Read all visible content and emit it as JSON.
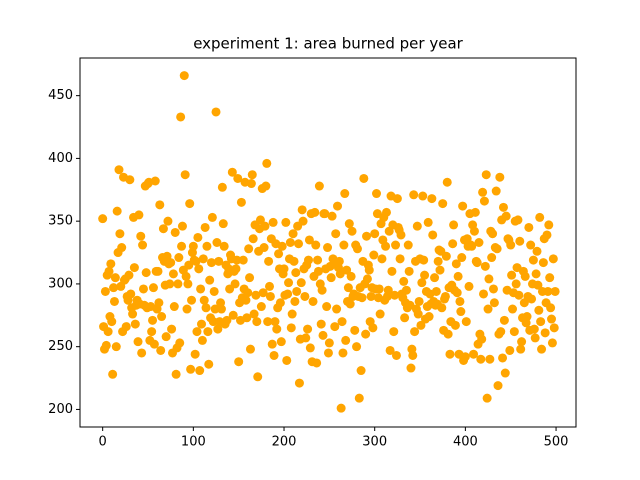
{
  "chart_data": {
    "type": "scatter",
    "title": "experiment 1: area burned per year",
    "color": "#ffa500",
    "xlim": [
      -25,
      522
    ],
    "ylim": [
      186,
      480
    ],
    "xticks": [
      0,
      100,
      200,
      300,
      400,
      500
    ],
    "yticks": [
      200,
      250,
      300,
      350,
      400,
      450
    ],
    "grid": false,
    "x": [
      0,
      1,
      2,
      3,
      4,
      5,
      6,
      7,
      8,
      9,
      10,
      11,
      12,
      13,
      14,
      15,
      16,
      17,
      18,
      19,
      20,
      21,
      22,
      23,
      24,
      25,
      26,
      27,
      28,
      29,
      30,
      31,
      32,
      33,
      34,
      35,
      36,
      37,
      38,
      39,
      40,
      41,
      42,
      43,
      44,
      45,
      46,
      47,
      48,
      49,
      50,
      51,
      52,
      53,
      54,
      55,
      56,
      57,
      58,
      59,
      60,
      61,
      62,
      63,
      64,
      65,
      66,
      67,
      68,
      69,
      70,
      71,
      72,
      73,
      74,
      75,
      76,
      77,
      78,
      79,
      80,
      81,
      82,
      83,
      84,
      85,
      86,
      87,
      88,
      89,
      90,
      91,
      92,
      93,
      94,
      95,
      96,
      97,
      98,
      99,
      100,
      101,
      102,
      103,
      104,
      105,
      106,
      107,
      108,
      109,
      110,
      111,
      112,
      113,
      114,
      115,
      116,
      117,
      118,
      119,
      120,
      121,
      122,
      123,
      124,
      125,
      126,
      127,
      128,
      129,
      130,
      131,
      132,
      133,
      134,
      135,
      136,
      137,
      138,
      139,
      140,
      141,
      142,
      143,
      144,
      145,
      146,
      147,
      148,
      149,
      150,
      151,
      152,
      153,
      154,
      155,
      156,
      157,
      158,
      159,
      160,
      161,
      162,
      163,
      164,
      165,
      166,
      167,
      168,
      169,
      170,
      171,
      172,
      173,
      174,
      175,
      176,
      177,
      178,
      179,
      180,
      181,
      182,
      183,
      184,
      185,
      186,
      187,
      188,
      189,
      190,
      191,
      192,
      193,
      194,
      195,
      196,
      197,
      198,
      199,
      200,
      201,
      202,
      203,
      204,
      205,
      206,
      207,
      208,
      209,
      210,
      211,
      212,
      213,
      214,
      215,
      216,
      217,
      218,
      219,
      220,
      221,
      222,
      223,
      224,
      225,
      226,
      227,
      228,
      229,
      230,
      231,
      232,
      233,
      234,
      235,
      236,
      237,
      238,
      239,
      240,
      241,
      242,
      243,
      244,
      245,
      246,
      247,
      248,
      249,
      250,
      251,
      252,
      253,
      254,
      255,
      256,
      257,
      258,
      259,
      260,
      261,
      262,
      263,
      264,
      265,
      266,
      267,
      268,
      269,
      270,
      271,
      272,
      273,
      274,
      275,
      276,
      277,
      278,
      279,
      280,
      281,
      282,
      283,
      284,
      285,
      286,
      287,
      288,
      289,
      290,
      291,
      292,
      293,
      294,
      295,
      296,
      297,
      298,
      299,
      300,
      301,
      302,
      303,
      304,
      305,
      306,
      307,
      308,
      309,
      310,
      311,
      312,
      313,
      314,
      315,
      316,
      317,
      318,
      319,
      320,
      321,
      322,
      323,
      324,
      325,
      326,
      327,
      328,
      329,
      330,
      331,
      332,
      333,
      334,
      335,
      336,
      337,
      338,
      339,
      340,
      341,
      342,
      343,
      344,
      345,
      346,
      347,
      348,
      349,
      350,
      351,
      352,
      353,
      354,
      355,
      356,
      357,
      358,
      359,
      360,
      361,
      362,
      363,
      364,
      365,
      366,
      367,
      368,
      369,
      370,
      371,
      372,
      373,
      374,
      375,
      376,
      377,
      378,
      379,
      380,
      381,
      382,
      383,
      384,
      385,
      386,
      387,
      388,
      389,
      390,
      391,
      392,
      393,
      394,
      395,
      396,
      397,
      398,
      399,
      400,
      401,
      402,
      403,
      404,
      405,
      406,
      407,
      408,
      409,
      410,
      411,
      412,
      413,
      414,
      415,
      416,
      417,
      418,
      419,
      420,
      421,
      422,
      423,
      424,
      425,
      426,
      427,
      428,
      429,
      430,
      431,
      432,
      433,
      434,
      435,
      436,
      437,
      438,
      439,
      440,
      441,
      442,
      443,
      444,
      445,
      446,
      447,
      448,
      449,
      450,
      451,
      452,
      453,
      454,
      455,
      456,
      457,
      458,
      459,
      460,
      461,
      462,
      463,
      464,
      465,
      466,
      467,
      468,
      469,
      470,
      471,
      472,
      473,
      474,
      475,
      476,
      477,
      478,
      479,
      480,
      481,
      482,
      483,
      484,
      485,
      486,
      487,
      488,
      489,
      490,
      491,
      492,
      493,
      494,
      495,
      496,
      497,
      498,
      499
    ],
    "values": [
      352,
      266,
      248,
      294,
      251,
      307,
      262,
      310,
      274,
      316,
      270,
      228,
      297,
      286,
      305,
      250,
      358,
      325,
      391,
      340,
      298,
      329,
      262,
      385,
      303,
      304,
      266,
      290,
      287,
      307,
      383,
      292,
      281,
      276,
      353,
      313,
      268,
      283,
      287,
      254,
      355,
      284,
      338,
      245,
      331,
      296,
      283,
      378,
      309,
      281,
      380,
      381,
      255,
      282,
      262,
      271,
      297,
      252,
      382,
      310,
      280,
      310,
      285,
      363,
      247,
      274,
      321,
      344,
      318,
      299,
      258,
      322,
      350,
      316,
      300,
      317,
      264,
      245,
      308,
      282,
      341,
      228,
      249,
      300,
      321,
      253,
      433,
      330,
      346,
      311,
      466,
      387,
      306,
      280,
      300,
      315,
      364,
      232,
      287,
      325,
      330,
      319,
      244,
      318,
      262,
      337,
      312,
      231,
      296,
      268,
      255,
      320,
      287,
      345,
      281,
      330,
      262,
      236,
      303,
      273,
      317,
      353,
      270,
      294,
      280,
      437,
      333,
      264,
      318,
      270,
      285,
      280,
      377,
      348,
      330,
      268,
      315,
      271,
      308,
      312,
      296,
      323,
      320,
      389,
      275,
      310,
      300,
      312,
      319,
      384,
      238,
      285,
      271,
      365,
      289,
      319,
      296,
      381,
      287,
      273,
      293,
      328,
      305,
      248,
      380,
      387,
      336,
      276,
      347,
      291,
      270,
      226,
      326,
      344,
      351,
      282,
      376,
      293,
      329,
      346,
      378,
      396,
      270,
      318,
      298,
      290,
      336,
      252,
      349,
      243,
      270,
      332,
      264,
      281,
      324,
      312,
      285,
      254,
      330,
      308,
      312,
      291,
      349,
      239,
      292,
      301,
      320,
      333,
      265,
      276,
      340,
      318,
      286,
      309,
      294,
      346,
      332,
      221,
      256,
      301,
      359,
      350,
      312,
      290,
      257,
      315,
      264,
      319,
      335,
      249,
      356,
      238,
      286,
      306,
      357,
      331,
      237,
      319,
      310,
      378,
      300,
      268,
      295,
      259,
      356,
      356,
      312,
      282,
      329,
      245,
      253,
      314,
      305,
      354,
      320,
      316,
      266,
      340,
      280,
      362,
      313,
      318,
      308,
      201,
      270,
      245,
      331,
      372,
      255,
      311,
      286,
      297,
      348,
      284,
      306,
      342,
      290,
      292,
      263,
      331,
      250,
      328,
      290,
      209,
      297,
      231,
      289,
      318,
      384,
      300,
      260,
      338,
      304,
      315,
      311,
      270,
      290,
      297,
      265,
      323,
      340,
      296,
      372,
      356,
      289,
      296,
      276,
      348,
      320,
      335,
      353,
      287,
      330,
      357,
      290,
      295,
      342,
      247,
      370,
      310,
      347,
      262,
      291,
      331,
      243,
      368,
      345,
      343,
      320,
      339,
      292,
      289,
      302,
      273,
      285,
      295,
      281,
      331,
      310,
      283,
      233,
      248,
      243,
      371,
      262,
      318,
      280,
      346,
      276,
      286,
      320,
      267,
      301,
      370,
      319,
      307,
      272,
      294,
      282,
      349,
      274,
      292,
      284,
      368,
      339,
      286,
      305,
      283,
      294,
      284,
      318,
      327,
      311,
      326,
      281,
      364,
      263,
      288,
      290,
      322,
      381,
      260,
      297,
      244,
      270,
      299,
      332,
      347,
      295,
      267,
      316,
      293,
      306,
      244,
      286,
      278,
      321,
      362,
      239,
      335,
      242,
      270,
      336,
      330,
      298,
      356,
      331,
      330,
      347,
      244,
      342,
      357,
      318,
      317,
      252,
      333,
      260,
      240,
      256,
      373,
      292,
      366,
      314,
      387,
      209,
      280,
      304,
      240,
      342,
      321,
      340,
      296,
      285,
      329,
      374,
      328,
      219,
      260,
      385,
      262,
      351,
      241,
      361,
      271,
      229,
      354,
      295,
      336,
      335,
      247,
      331,
      307,
      280,
      293,
      262,
      350,
      300,
      313,
      351,
      291,
      334,
      248,
      254,
      273,
      310,
      285,
      306,
      269,
      274,
      290,
      345,
      263,
      331,
      288,
      300,
      319,
      264,
      257,
      308,
      326,
      299,
      279,
      353,
      270,
      248,
      294,
      317,
      336,
      261,
      285,
      339,
      294,
      347,
      305,
      281,
      272,
      253,
      320,
      265,
      294
    ]
  }
}
